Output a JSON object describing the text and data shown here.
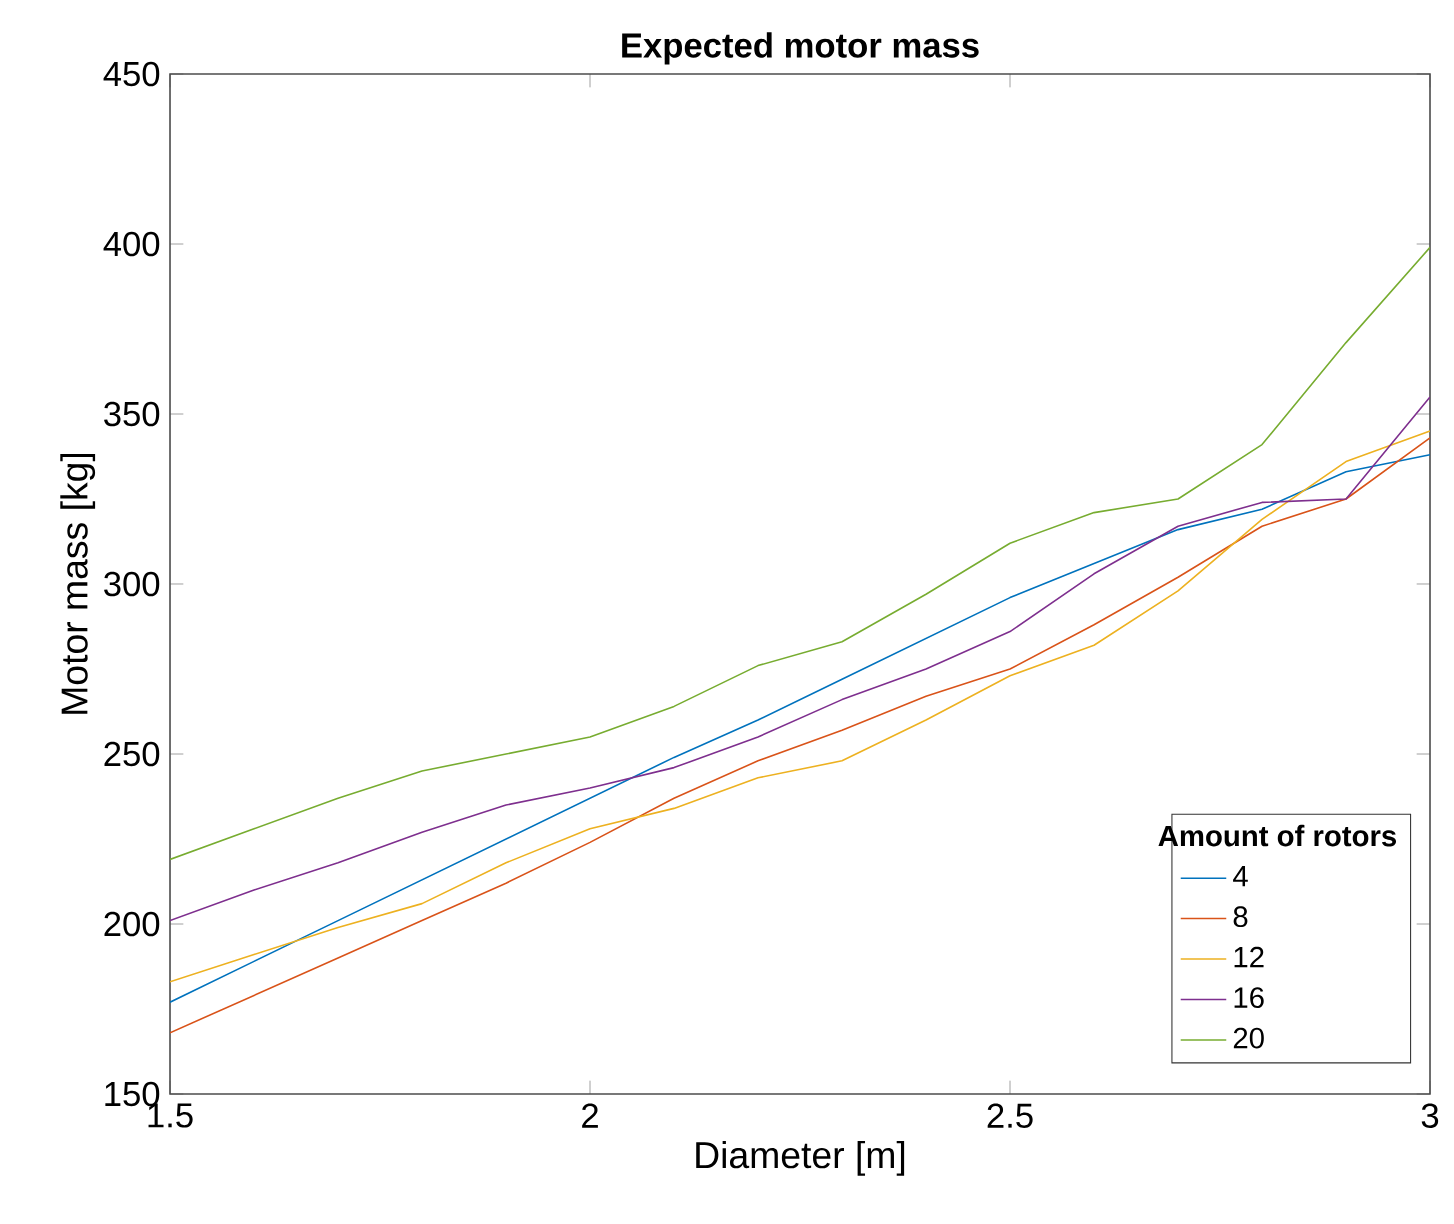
{
  "chart_data": {
    "type": "line",
    "title": "Expected motor mass",
    "xlabel": "Diameter [m]",
    "ylabel": "Motor mass [kg]",
    "legend_title": "Amount of rotors",
    "x": [
      1.5,
      1.6,
      1.7,
      1.8,
      1.9,
      2.0,
      2.1,
      2.2,
      2.3,
      2.4,
      2.5,
      2.6,
      2.7,
      2.8,
      2.9,
      3.0
    ],
    "series": [
      {
        "name": "4",
        "color": "#0072bd",
        "values": [
          177,
          189,
          201,
          213,
          225,
          237,
          249,
          260,
          272,
          284,
          296,
          306,
          316,
          322,
          333,
          338
        ]
      },
      {
        "name": "8",
        "color": "#d95319",
        "values": [
          168,
          179,
          190,
          201,
          212,
          224,
          237,
          248,
          257,
          267,
          275,
          288,
          302,
          317,
          325,
          343
        ]
      },
      {
        "name": "12",
        "color": "#edb120",
        "values": [
          183,
          191,
          199,
          206,
          218,
          228,
          234,
          243,
          248,
          260,
          273,
          282,
          298,
          319,
          336,
          345
        ]
      },
      {
        "name": "16",
        "color": "#7e2f8e",
        "values": [
          201,
          210,
          218,
          227,
          235,
          240,
          246,
          255,
          266,
          275,
          286,
          303,
          317,
          324,
          325,
          355
        ]
      },
      {
        "name": "20",
        "color": "#77ac30",
        "values": [
          219,
          228,
          237,
          245,
          250,
          255,
          264,
          276,
          283,
          297,
          312,
          321,
          325,
          341,
          371,
          399
        ]
      }
    ],
    "xlim": [
      1.5,
      3
    ],
    "ylim": [
      150,
      450
    ],
    "xticks": [
      1.5,
      2,
      2.5,
      3
    ],
    "yticks": [
      150,
      200,
      250,
      300,
      350,
      400,
      450
    ],
    "grid": false,
    "legend": "bottom right",
    "marker": "none",
    "line_style": "solid"
  }
}
